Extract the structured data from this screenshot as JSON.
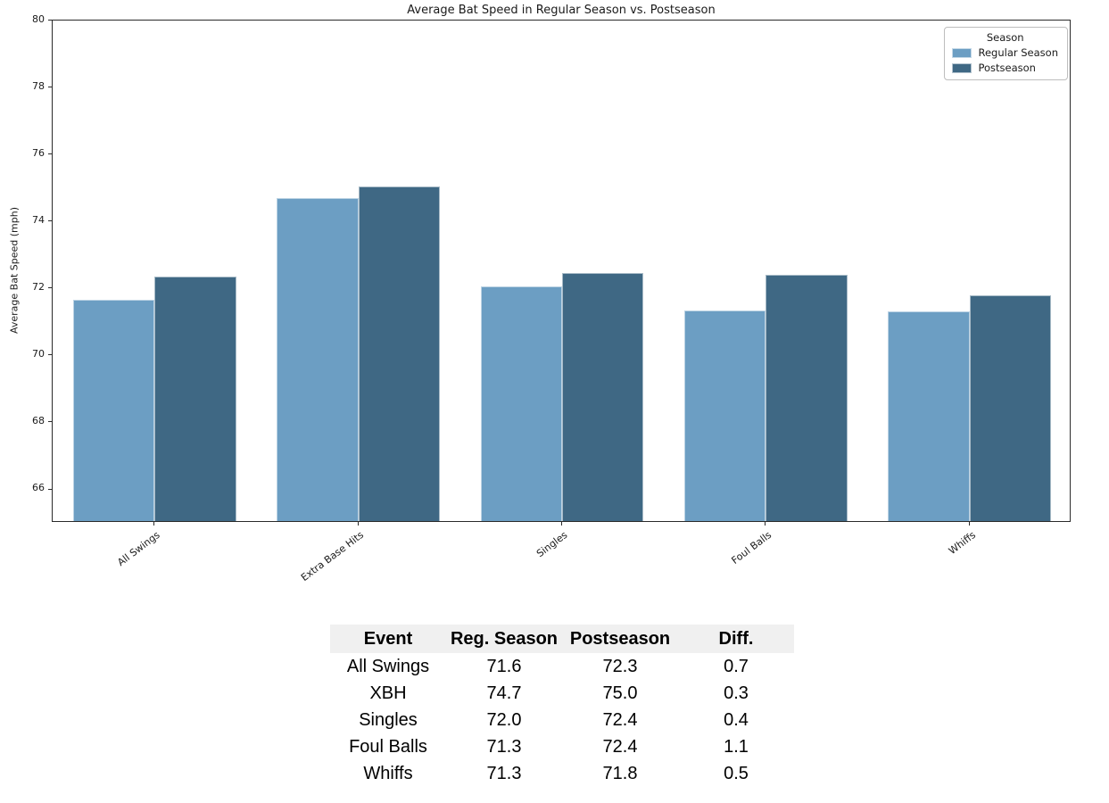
{
  "chart_data": {
    "type": "bar",
    "title": "Average Bat Speed in Regular Season vs. Postseason",
    "xlabel": "",
    "ylabel": "Average Bat Speed (mph)",
    "categories": [
      "All Swings",
      "Extra Base Hits",
      "Singles",
      "Foul Balls",
      "Whiffs"
    ],
    "series": [
      {
        "name": "Regular Season",
        "color": "#6C9EC3",
        "values": [
          71.6,
          74.65,
          72.0,
          71.3,
          71.25
        ]
      },
      {
        "name": "Postseason",
        "color": "#3F6884",
        "values": [
          72.3,
          75.0,
          72.4,
          72.35,
          71.75
        ]
      }
    ],
    "ylim": [
      65,
      80
    ],
    "yticks": [
      66,
      68,
      70,
      72,
      74,
      76,
      78,
      80
    ],
    "grid": false,
    "legend": {
      "title": "Season",
      "position": "upper right"
    }
  },
  "table": {
    "header_bg": "#f0f0f0",
    "headers": [
      "Event",
      "Reg. Season",
      "Postseason",
      "Diff."
    ],
    "rows": [
      [
        "All Swings",
        "71.6",
        "72.3",
        "0.7"
      ],
      [
        "XBH",
        "74.7",
        "75.0",
        "0.3"
      ],
      [
        "Singles",
        "72.0",
        "72.4",
        "0.4"
      ],
      [
        "Foul Balls",
        "71.3",
        "72.4",
        "1.1"
      ],
      [
        "Whiffs",
        "71.3",
        "71.8",
        "0.5"
      ]
    ]
  }
}
